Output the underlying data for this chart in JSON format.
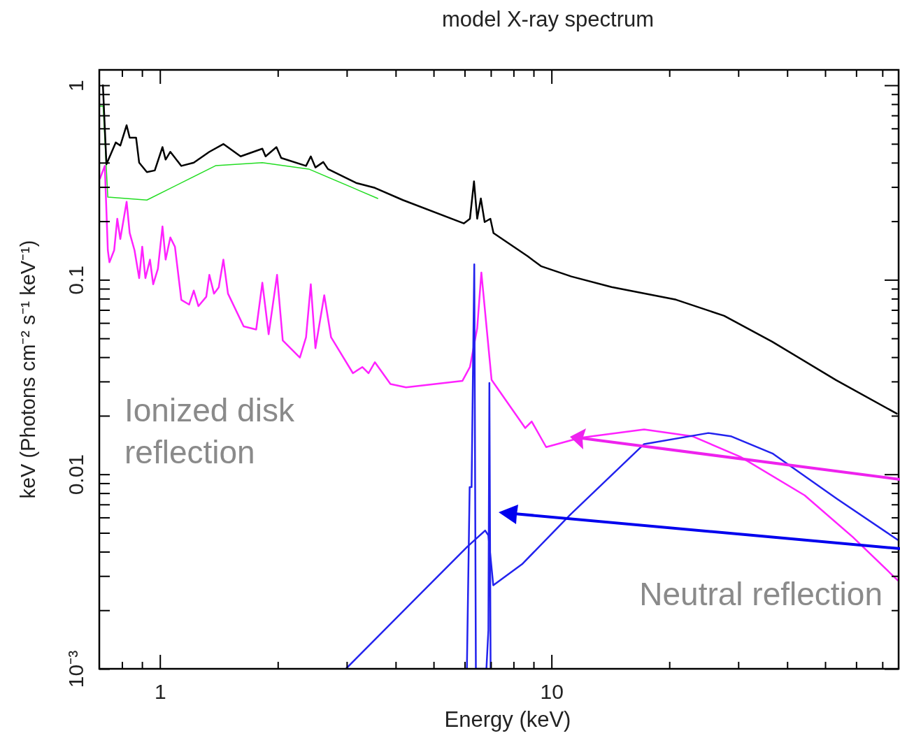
{
  "chart_data": {
    "type": "line",
    "title": "model X-ray spectrum",
    "xlabel": "Energy (keV)",
    "ylabel": "keV (Photons cm⁻² s⁻¹ keV⁻¹)",
    "log": "xy",
    "legend": false,
    "grid": false,
    "marker": "none",
    "line_style": "solid",
    "xlim": [
      0.7,
      77
    ],
    "ylim": [
      0.001,
      1.2
    ],
    "xticks": [
      {
        "value": 0.8,
        "label": null
      },
      {
        "value": 0.9,
        "label": null
      },
      1,
      {
        "value": 2,
        "label": null
      },
      {
        "value": 3,
        "label": null
      },
      {
        "value": 4,
        "label": null
      },
      {
        "value": 5,
        "label": null
      },
      {
        "value": 6,
        "label": null
      },
      {
        "value": 7,
        "label": null
      },
      {
        "value": 8,
        "label": null
      },
      {
        "value": 9,
        "label": null
      },
      10,
      {
        "value": 20,
        "label": null
      },
      {
        "value": 30,
        "label": null
      },
      {
        "value": 40,
        "label": null
      },
      {
        "value": 50,
        "label": null
      },
      {
        "value": 60,
        "label": null
      },
      {
        "value": 70,
        "label": null
      }
    ],
    "yticks": [
      {
        "value": 0.001,
        "label": "10⁻³"
      },
      {
        "value": 0.002,
        "label": null
      },
      {
        "value": 0.003,
        "label": null
      },
      {
        "value": 0.004,
        "label": null
      },
      {
        "value": 0.005,
        "label": null
      },
      {
        "value": 0.006,
        "label": null
      },
      {
        "value": 0.007,
        "label": null
      },
      {
        "value": 0.008,
        "label": null
      },
      {
        "value": 0.009,
        "label": null
      },
      0.01,
      {
        "value": 0.02,
        "label": null
      },
      {
        "value": 0.03,
        "label": null
      },
      {
        "value": 0.04,
        "label": null
      },
      {
        "value": 0.05,
        "label": null
      },
      {
        "value": 0.06,
        "label": null
      },
      {
        "value": 0.07,
        "label": null
      },
      {
        "value": 0.08,
        "label": null
      },
      {
        "value": 0.09,
        "label": null
      },
      0.1,
      {
        "value": 0.2,
        "label": null
      },
      {
        "value": 0.3,
        "label": null
      },
      {
        "value": 0.4,
        "label": null
      },
      {
        "value": 0.5,
        "label": null
      },
      {
        "value": 0.6,
        "label": null
      },
      {
        "value": 0.7,
        "label": null
      },
      {
        "value": 0.8,
        "label": null
      },
      {
        "value": 0.9,
        "label": null
      },
      1
    ],
    "annotations": [
      "Ionized disk\nreflection",
      "Neutral reflection"
    ],
    "series": [
      {
        "color": "#22dd22",
        "x": [
          0.7,
          0.716,
          0.736,
          0.926,
          1.387,
          1.826,
          2.4,
          3.6
        ],
        "values": [
          0.78,
          0.78,
          0.266,
          0.257,
          0.386,
          0.4,
          0.371,
          0.262
        ]
      },
      {
        "color": "#000000",
        "x": [
          0.715,
          0.73,
          0.771,
          0.792,
          0.822,
          0.837,
          0.869,
          0.885,
          0.926,
          0.97,
          1.015,
          1.034,
          1.063,
          1.134,
          1.22,
          1.337,
          1.452,
          1.607,
          1.826,
          1.861,
          1.984,
          2.04,
          2.361,
          2.428,
          2.495,
          2.613,
          2.686,
          3.169,
          3.539,
          4.173,
          5.97,
          6.19,
          6.34,
          6.46,
          6.6,
          6.75,
          6.98,
          7.11,
          8.7,
          9.4,
          11.24,
          14.24,
          20.8,
          27.6,
          36.6,
          53.3,
          76.2
        ],
        "values": [
          1.0,
          0.393,
          0.508,
          0.49,
          0.623,
          0.538,
          0.538,
          0.4,
          0.358,
          0.365,
          0.481,
          0.415,
          0.455,
          0.385,
          0.4,
          0.455,
          0.499,
          0.431,
          0.472,
          0.431,
          0.481,
          0.423,
          0.385,
          0.431,
          0.378,
          0.403,
          0.371,
          0.315,
          0.297,
          0.257,
          0.195,
          0.206,
          0.321,
          0.206,
          0.262,
          0.198,
          0.206,
          0.174,
          0.132,
          0.1175,
          0.104,
          0.0917,
          0.079,
          0.0653,
          0.0481,
          0.0305,
          0.0205
        ]
      },
      {
        "color": "#ff22ff",
        "x": [
          0.703,
          0.723,
          0.736,
          0.743,
          0.764,
          0.778,
          0.792,
          0.822,
          0.837,
          0.861,
          0.885,
          0.901,
          0.918,
          0.943,
          0.961,
          0.988,
          1.015,
          1.034,
          1.063,
          1.092,
          1.134,
          1.187,
          1.22,
          1.254,
          1.313,
          1.337,
          1.374,
          1.413,
          1.452,
          1.492,
          1.636,
          1.761,
          1.826,
          1.895,
          1.991,
          2.059,
          2.277,
          2.361,
          2.428,
          2.495,
          2.628,
          2.736,
          3.111,
          3.287,
          3.41,
          3.539,
          3.879,
          4.25,
          5.92,
          6.19,
          6.46,
          6.62,
          7.03,
          8.57,
          8.9,
          9.69,
          11.82,
          17.24,
          22.88,
          30.36,
          44.31,
          58.8,
          76.6
        ],
        "values": [
          0.332,
          0.385,
          0.142,
          0.123,
          0.142,
          0.206,
          0.162,
          0.252,
          0.174,
          0.142,
          0.102,
          0.148,
          0.102,
          0.127,
          0.0948,
          0.114,
          0.188,
          0.127,
          0.165,
          0.148,
          0.0788,
          0.0746,
          0.088,
          0.0732,
          0.0818,
          0.106,
          0.0849,
          0.0914,
          0.127,
          0.0849,
          0.0576,
          0.0555,
          0.0966,
          0.0525,
          0.106,
          0.0488,
          0.0398,
          0.0506,
          0.0948,
          0.0445,
          0.0833,
          0.0506,
          0.0331,
          0.0356,
          0.0331,
          0.0377,
          0.0291,
          0.028,
          0.0302,
          0.0356,
          0.0563,
          0.109,
          0.0306,
          0.0173,
          0.0187,
          0.0138,
          0.0154,
          0.017,
          0.0157,
          0.0123,
          0.0078,
          0.00476,
          0.00285
        ]
      },
      {
        "color": "#2222ee",
        "x": [
          2.985,
          4.598,
          6.1,
          6.77,
          6.9,
          7.1,
          8.41,
          11.17,
          17.24,
          25.15,
          28.7,
          36.67,
          53.5,
          76.6
        ],
        "values": [
          0.001,
          0.0024,
          0.00425,
          0.00514,
          0.00485,
          0.00269,
          0.00345,
          0.0062,
          0.0143,
          0.0163,
          0.0157,
          0.0128,
          0.0075,
          0.0046
        ]
      },
      {
        "color": "#2222ee",
        "x": [
          6.08,
          6.18,
          6.25,
          6.35,
          6.41,
          6.82,
          6.9,
          6.94,
          6.99
        ],
        "values": [
          0.001,
          0.0086,
          0.0086,
          0.12,
          0.001,
          0.001,
          0.00158,
          0.0295,
          0.001
        ]
      }
    ]
  }
}
